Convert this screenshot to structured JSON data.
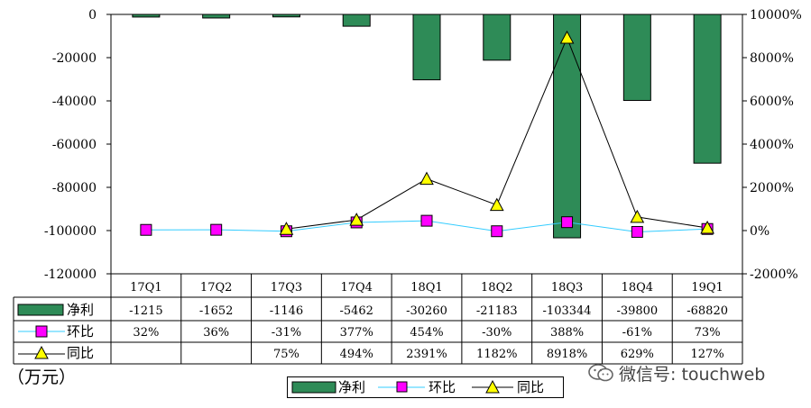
{
  "chart_data": {
    "type": "bar",
    "categories": [
      "17Q1",
      "17Q2",
      "17Q3",
      "17Q4",
      "18Q1",
      "18Q2",
      "18Q3",
      "18Q4",
      "19Q1"
    ],
    "series": [
      {
        "name": "净利",
        "kind": "bar",
        "axis": "left",
        "color": "#2E8B57",
        "values": [
          -1215,
          -1652,
          -1146,
          -5462,
          -30260,
          -21183,
          -103344,
          -39800,
          -68820
        ],
        "labels": [
          "-1215",
          "-1652",
          "-1146",
          "-5462",
          "-30260",
          "-21183",
          "-103344",
          "-39800",
          "-68820"
        ]
      },
      {
        "name": "环比",
        "kind": "line",
        "axis": "right",
        "color": "#33CCFF",
        "marker": "square",
        "marker_color": "#FF00FF",
        "values": [
          32,
          36,
          -31,
          377,
          454,
          -30,
          388,
          -61,
          73
        ],
        "labels": [
          "32%",
          "36%",
          "-31%",
          "377%",
          "454%",
          "-30%",
          "388%",
          "-61%",
          "73%"
        ]
      },
      {
        "name": "同比",
        "kind": "line",
        "axis": "right",
        "color": "#000000",
        "marker": "triangle",
        "marker_color": "#FFFF00",
        "values": [
          null,
          null,
          75,
          494,
          2391,
          1182,
          8918,
          629,
          127
        ],
        "labels": [
          "",
          "",
          "75%",
          "494%",
          "2391%",
          "1182%",
          "8918%",
          "629%",
          "127%"
        ]
      }
    ],
    "y_left": {
      "min": -120000,
      "max": 0,
      "step": 20000,
      "ticks": [
        "0",
        "-20000",
        "-40000",
        "-60000",
        "-80000",
        "-100000",
        "-120000"
      ]
    },
    "y_right": {
      "min": -2000,
      "max": 10000,
      "step": 2000,
      "ticks": [
        "10000%",
        "8000%",
        "6000%",
        "4000%",
        "2000%",
        "0%",
        "-2000%"
      ]
    },
    "unit": "（万元）",
    "legend_position": "bottom-center",
    "grid": false
  },
  "watermark": {
    "text": "微信号: touchweb",
    "icon": "wechat-icon"
  }
}
